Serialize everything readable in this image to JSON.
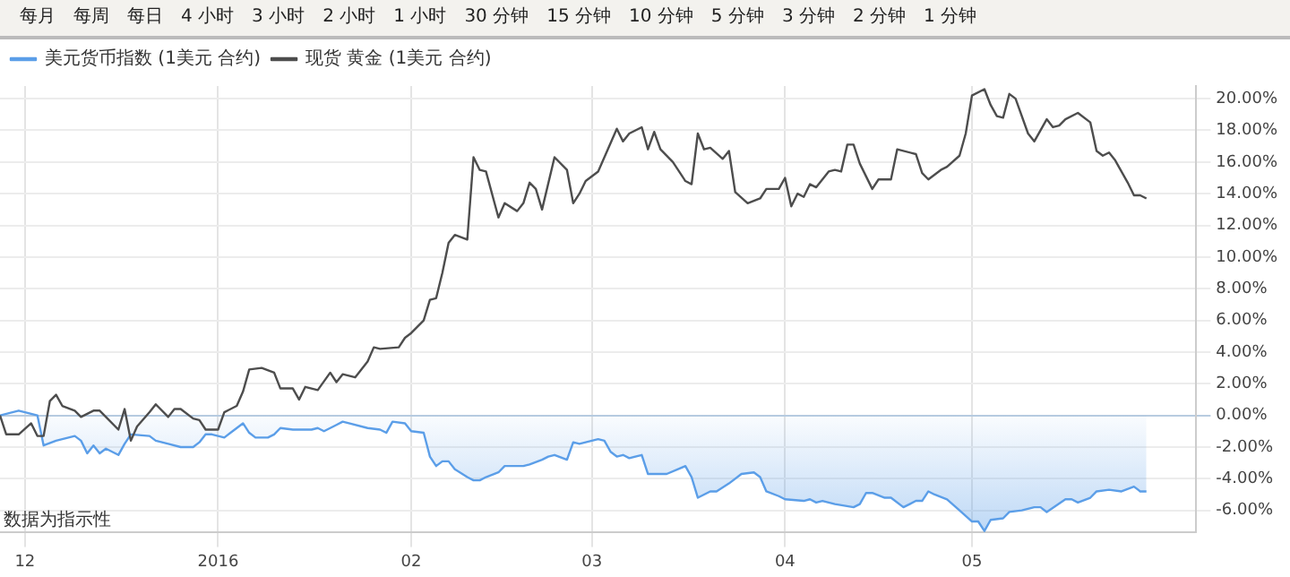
{
  "chart_data": {
    "type": "line",
    "xlim": [
      "2015-11-27",
      "2016-06-06"
    ],
    "ylim": [
      -7.4,
      20.8
    ],
    "xticks": [
      {
        "value": "2015-12",
        "label": "12"
      },
      {
        "value": "2016-01",
        "label": "2016"
      },
      {
        "value": "2016-02",
        "label": "02"
      },
      {
        "value": "2016-03",
        "label": "03"
      },
      {
        "value": "2016-04",
        "label": "04"
      },
      {
        "value": "2016-05",
        "label": "05"
      }
    ],
    "yticks": [
      {
        "value": -6,
        "label": "-6.00%"
      },
      {
        "value": -4,
        "label": "-4.00%"
      },
      {
        "value": -2,
        "label": "-2.00%"
      },
      {
        "value": 0,
        "label": "0.00%"
      },
      {
        "value": 2,
        "label": "2.00%"
      },
      {
        "value": 4,
        "label": "4.00%"
      },
      {
        "value": 6,
        "label": "6.00%"
      },
      {
        "value": 8,
        "label": "8.00%"
      },
      {
        "value": 10,
        "label": "10.00%"
      },
      {
        "value": 12,
        "label": "12.00%"
      },
      {
        "value": 14,
        "label": "14.00%"
      },
      {
        "value": 16,
        "label": "16.00%"
      },
      {
        "value": 18,
        "label": "18.00%"
      },
      {
        "value": 20,
        "label": "20.00%"
      }
    ],
    "grid": true,
    "legend": "top left",
    "marker": "none",
    "line_style": "solid",
    "annotations": [
      "数据为指示性",
      "每月",
      "每周",
      "每日",
      "4 小时",
      "3 小时",
      "2 小时",
      "1 小时",
      "30 分钟",
      "15 分钟",
      "10 分钟",
      "5 分钟",
      "3 分钟",
      "2 分钟",
      "1 分钟"
    ],
    "series": [
      {
        "name": "美元货币指数 (1美元 合约)",
        "type": "area",
        "color": "#5b9ee8",
        "x": [
          "2015-11-27",
          "2015-11-30",
          "2015-12-03",
          "2015-12-04",
          "2015-12-06",
          "2015-12-09",
          "2015-12-10",
          "2015-12-11",
          "2015-12-12",
          "2015-12-13",
          "2015-12-14",
          "2015-12-16",
          "2015-12-17",
          "2015-12-18",
          "2015-12-21",
          "2015-12-22",
          "2015-12-24",
          "2015-12-26",
          "2015-12-28",
          "2015-12-29",
          "2015-12-30",
          "2015-12-31",
          "2016-01-02",
          "2016-01-04",
          "2016-01-05",
          "2016-01-06",
          "2016-01-07",
          "2016-01-09",
          "2016-01-10",
          "2016-01-11",
          "2016-01-13",
          "2016-01-16",
          "2016-01-17",
          "2016-01-18",
          "2016-01-20",
          "2016-01-21",
          "2016-01-22",
          "2016-01-25",
          "2016-01-27",
          "2016-01-28",
          "2016-01-29",
          "2016-01-31",
          "2016-02-01",
          "2016-02-03",
          "2016-02-04",
          "2016-02-05",
          "2016-02-06",
          "2016-02-07",
          "2016-02-08",
          "2016-02-10",
          "2016-02-11",
          "2016-02-12",
          "2016-02-13",
          "2016-02-15",
          "2016-02-16",
          "2016-02-19",
          "2016-02-20",
          "2016-02-22",
          "2016-02-23",
          "2016-02-24",
          "2016-02-26",
          "2016-02-27",
          "2016-02-28",
          "2016-03-02",
          "2016-03-03",
          "2016-03-04",
          "2016-03-05",
          "2016-03-06",
          "2016-03-07",
          "2016-03-09",
          "2016-03-10",
          "2016-03-13",
          "2016-03-16",
          "2016-03-17",
          "2016-03-18",
          "2016-03-20",
          "2016-03-21",
          "2016-03-23",
          "2016-03-25",
          "2016-03-27",
          "2016-03-28",
          "2016-03-29",
          "2016-03-31",
          "2016-04-01",
          "2016-04-04",
          "2016-04-05",
          "2016-04-06",
          "2016-04-07",
          "2016-04-09",
          "2016-04-12",
          "2016-04-13",
          "2016-04-14",
          "2016-04-15",
          "2016-04-17",
          "2016-04-18",
          "2016-04-20",
          "2016-04-22",
          "2016-04-23",
          "2016-04-24",
          "2016-04-25",
          "2016-04-27",
          "2016-04-29",
          "2016-05-01",
          "2016-05-02",
          "2016-05-03",
          "2016-05-04",
          "2016-05-06",
          "2016-05-07",
          "2016-05-09",
          "2016-05-11",
          "2016-05-12",
          "2016-05-13",
          "2016-05-16",
          "2016-05-17",
          "2016-05-18",
          "2016-05-20",
          "2016-05-21",
          "2016-05-23",
          "2016-05-25",
          "2016-05-27",
          "2016-05-28",
          "2016-05-29"
        ],
        "values": [
          0.0,
          0.3,
          0.0,
          -1.9,
          -1.6,
          -1.3,
          -1.6,
          -2.4,
          -1.9,
          -2.4,
          -2.1,
          -2.5,
          -1.8,
          -1.2,
          -1.3,
          -1.6,
          -1.8,
          -2.0,
          -2.0,
          -1.7,
          -1.2,
          -1.2,
          -1.4,
          -0.8,
          -0.5,
          -1.1,
          -1.4,
          -1.4,
          -1.2,
          -0.8,
          -0.9,
          -0.9,
          -0.8,
          -1.0,
          -0.6,
          -0.4,
          -0.5,
          -0.8,
          -0.9,
          -1.1,
          -0.4,
          -0.5,
          -1.0,
          -1.1,
          -2.6,
          -3.2,
          -2.9,
          -2.9,
          -3.4,
          -3.9,
          -4.1,
          -4.1,
          -3.9,
          -3.6,
          -3.2,
          -3.2,
          -3.1,
          -2.8,
          -2.6,
          -2.5,
          -2.8,
          -1.7,
          -1.8,
          -1.5,
          -1.6,
          -2.3,
          -2.6,
          -2.5,
          -2.7,
          -2.5,
          -3.7,
          -3.7,
          -3.2,
          -3.9,
          -5.2,
          -4.8,
          -4.8,
          -4.3,
          -3.7,
          -3.6,
          -3.9,
          -4.8,
          -5.1,
          -5.3,
          -5.4,
          -5.3,
          -5.5,
          -5.4,
          -5.6,
          -5.8,
          -5.6,
          -4.9,
          -4.9,
          -5.2,
          -5.2,
          -5.8,
          -5.4,
          -5.4,
          -4.8,
          -5.0,
          -5.3,
          -6.0,
          -6.7,
          -6.7,
          -7.3,
          -6.6,
          -6.5,
          -6.1,
          -6.0,
          -5.8,
          -5.8,
          -6.1,
          -5.3,
          -5.3,
          -5.5,
          -5.2,
          -4.8,
          -4.7,
          -4.8,
          -4.5,
          -4.8,
          -4.8
        ]
      },
      {
        "name": "现货 黄金 (1美元 合约)",
        "type": "line",
        "color": "#4d4d4d",
        "x": [
          "2015-11-27",
          "2015-11-28",
          "2015-11-30",
          "2015-12-02",
          "2015-12-03",
          "2015-12-04",
          "2015-12-05",
          "2015-12-06",
          "2015-12-07",
          "2015-12-09",
          "2015-12-10",
          "2015-12-12",
          "2015-12-13",
          "2015-12-14",
          "2015-12-16",
          "2015-12-17",
          "2015-12-18",
          "2015-12-19",
          "2015-12-21",
          "2015-12-22",
          "2015-12-24",
          "2015-12-25",
          "2015-12-26",
          "2015-12-28",
          "2015-12-29",
          "2015-12-30",
          "2016-01-01",
          "2016-01-02",
          "2016-01-04",
          "2016-01-05",
          "2016-01-06",
          "2016-01-08",
          "2016-01-10",
          "2016-01-11",
          "2016-01-13",
          "2016-01-14",
          "2016-01-15",
          "2016-01-17",
          "2016-01-19",
          "2016-01-20",
          "2016-01-21",
          "2016-01-23",
          "2016-01-25",
          "2016-01-26",
          "2016-01-27",
          "2016-01-30",
          "2016-01-31",
          "2016-02-01",
          "2016-02-03",
          "2016-02-04",
          "2016-02-05",
          "2016-02-06",
          "2016-02-07",
          "2016-02-08",
          "2016-02-10",
          "2016-02-11",
          "2016-02-12",
          "2016-02-13",
          "2016-02-15",
          "2016-02-16",
          "2016-02-18",
          "2016-02-19",
          "2016-02-20",
          "2016-02-21",
          "2016-02-22",
          "2016-02-24",
          "2016-02-26",
          "2016-02-27",
          "2016-02-28",
          "2016-02-29",
          "2016-03-02",
          "2016-03-05",
          "2016-03-06",
          "2016-03-07",
          "2016-03-09",
          "2016-03-10",
          "2016-03-11",
          "2016-03-12",
          "2016-03-14",
          "2016-03-16",
          "2016-03-17",
          "2016-03-18",
          "2016-03-19",
          "2016-03-20",
          "2016-03-22",
          "2016-03-23",
          "2016-03-24",
          "2016-03-26",
          "2016-03-28",
          "2016-03-29",
          "2016-03-31",
          "2016-04-01",
          "2016-04-02",
          "2016-04-03",
          "2016-04-04",
          "2016-04-05",
          "2016-04-06",
          "2016-04-08",
          "2016-04-09",
          "2016-04-10",
          "2016-04-11",
          "2016-04-12",
          "2016-04-13",
          "2016-04-15",
          "2016-04-16",
          "2016-04-18",
          "2016-04-19",
          "2016-04-22",
          "2016-04-23",
          "2016-04-24",
          "2016-04-26",
          "2016-04-27",
          "2016-04-29",
          "2016-04-30",
          "2016-05-01",
          "2016-05-03",
          "2016-05-04",
          "2016-05-05",
          "2016-05-06",
          "2016-05-07",
          "2016-05-08",
          "2016-05-10",
          "2016-05-11",
          "2016-05-13",
          "2016-05-14",
          "2016-05-15",
          "2016-05-16",
          "2016-05-18",
          "2016-05-20",
          "2016-05-21",
          "2016-05-22",
          "2016-05-23",
          "2016-05-24",
          "2016-05-26",
          "2016-05-27",
          "2016-05-28",
          "2016-05-29"
        ],
        "values": [
          0.0,
          -1.2,
          -1.2,
          -0.5,
          -1.3,
          -1.3,
          0.9,
          1.3,
          0.6,
          0.3,
          -0.1,
          0.3,
          0.3,
          -0.1,
          -0.9,
          0.4,
          -1.6,
          -0.7,
          0.2,
          0.7,
          -0.1,
          0.4,
          0.4,
          -0.2,
          -0.3,
          -0.9,
          -0.9,
          0.2,
          0.6,
          1.5,
          2.9,
          3.0,
          2.7,
          1.7,
          1.7,
          1.0,
          1.8,
          1.6,
          2.7,
          2.1,
          2.6,
          2.4,
          3.4,
          4.3,
          4.2,
          4.3,
          4.9,
          5.2,
          6.0,
          7.3,
          7.4,
          9.0,
          10.9,
          11.4,
          11.1,
          16.3,
          15.5,
          15.4,
          12.5,
          13.4,
          12.9,
          13.4,
          14.7,
          14.3,
          13.0,
          16.3,
          15.5,
          13.4,
          14.0,
          14.8,
          15.4,
          18.1,
          17.3,
          17.8,
          18.2,
          16.8,
          17.9,
          16.8,
          16.0,
          14.8,
          14.6,
          17.8,
          16.8,
          16.9,
          16.2,
          16.7,
          14.1,
          13.4,
          13.7,
          14.3,
          14.3,
          15.0,
          13.2,
          14.0,
          13.8,
          14.6,
          14.4,
          15.4,
          15.5,
          15.4,
          17.1,
          17.1,
          15.9,
          14.3,
          14.9,
          14.9,
          16.8,
          16.5,
          15.3,
          14.9,
          15.5,
          15.7,
          16.4,
          17.8,
          20.2,
          20.6,
          19.6,
          18.9,
          18.8,
          20.3,
          20.0,
          17.8,
          17.3,
          18.7,
          18.2,
          18.3,
          18.7,
          19.1,
          18.5,
          16.7,
          16.4,
          16.6,
          16.1,
          14.7,
          13.9,
          13.9,
          13.7
        ]
      }
    ]
  }
}
